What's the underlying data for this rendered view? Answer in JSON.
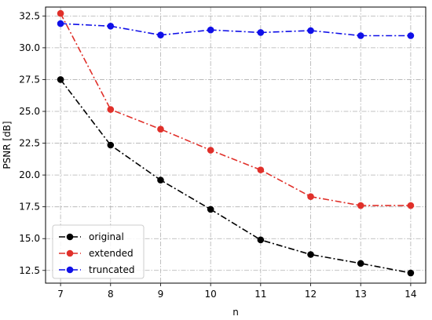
{
  "chart_data": {
    "type": "line",
    "xlabel": "n",
    "ylabel": "PSNR [dB]",
    "x": [
      7,
      8,
      9,
      10,
      11,
      12,
      13,
      14
    ],
    "xlim": [
      6.7,
      14.3
    ],
    "ylim": [
      11.5,
      33.2
    ],
    "x_ticks": [
      "7",
      "8",
      "9",
      "10",
      "11",
      "12",
      "13",
      "14"
    ],
    "y_ticks": [
      "12.5",
      "15.0",
      "17.5",
      "20.0",
      "22.5",
      "25.0",
      "27.5",
      "30.0",
      "32.5"
    ],
    "grid": true,
    "legend_position": "lower-left",
    "series": [
      {
        "name": "original",
        "color": "#000000",
        "values": [
          27.5,
          22.35,
          19.6,
          17.3,
          14.9,
          13.75,
          13.05,
          12.3
        ]
      },
      {
        "name": "extended",
        "color": "#e0302a",
        "values": [
          32.7,
          25.15,
          23.6,
          21.95,
          20.4,
          18.3,
          17.6,
          17.6
        ]
      },
      {
        "name": "truncated",
        "color": "#1010e8",
        "values": [
          31.9,
          31.7,
          31.0,
          31.4,
          31.2,
          31.35,
          30.95,
          30.95
        ]
      }
    ]
  }
}
